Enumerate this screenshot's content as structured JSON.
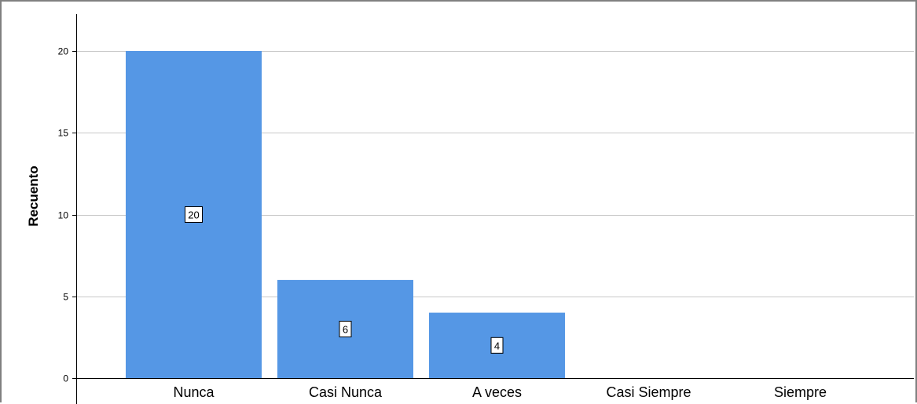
{
  "chart_data": {
    "type": "bar",
    "categories": [
      "Nunca",
      "Casi Nunca",
      "A veces",
      "Casi Siempre",
      "Siempre"
    ],
    "values": [
      20,
      6,
      4,
      0,
      0
    ],
    "data_labels": [
      "20",
      "6",
      "4",
      "",
      ""
    ],
    "title": "",
    "xlabel": "",
    "ylabel": "Recuento",
    "ylim": [
      0,
      22
    ],
    "yticks": [
      0,
      5,
      10,
      15,
      20
    ],
    "ytick_labels": [
      "0",
      "5",
      "10",
      "15",
      "20"
    ],
    "grid": true,
    "legend": "none",
    "colors": {
      "bar": "#5597e5",
      "grid": "#c8c8c8",
      "axis": "#000000",
      "frame": "#808080"
    }
  }
}
